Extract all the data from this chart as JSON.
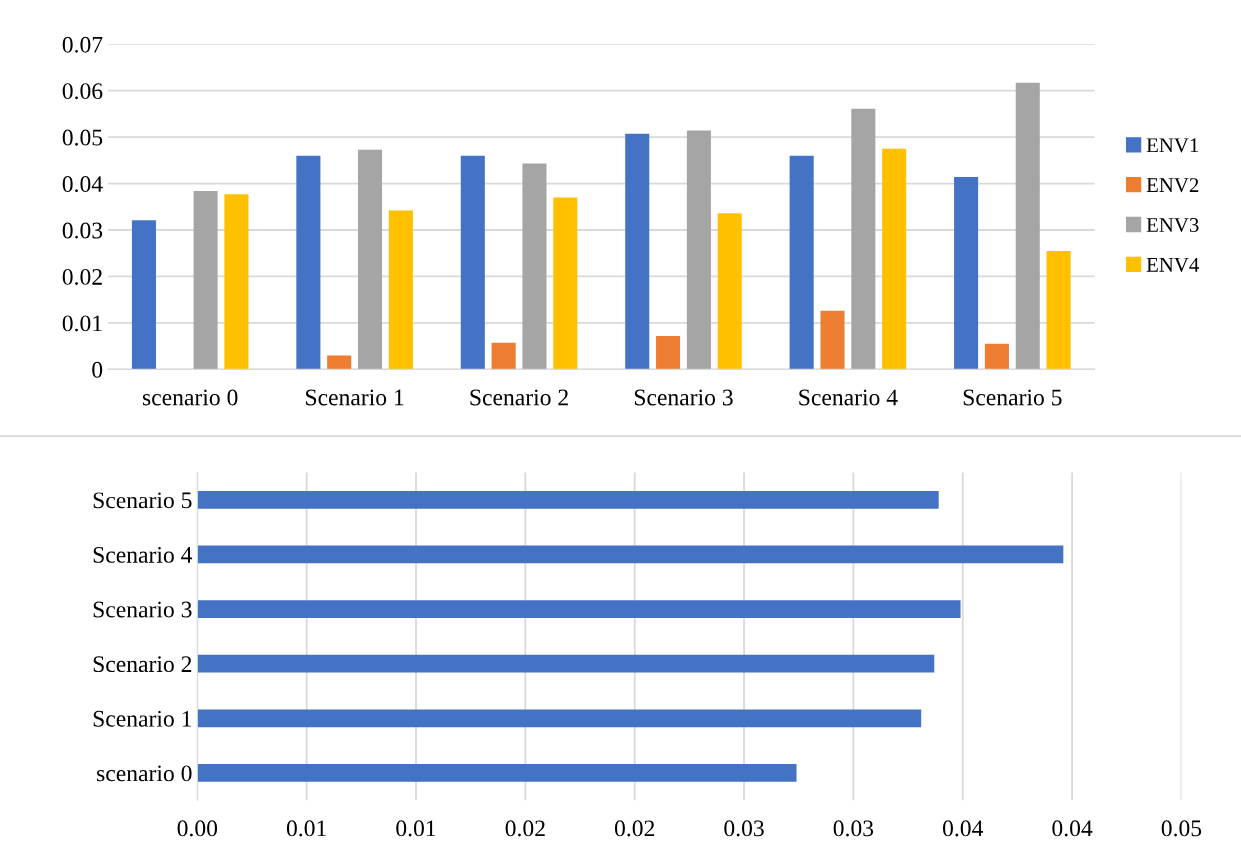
{
  "chart_data": [
    {
      "type": "bar",
      "categories": [
        "scenario 0",
        "Scenario 1",
        "Scenario 2",
        "Scenario 3",
        "Scenario 4",
        "Scenario 5"
      ],
      "series": [
        {
          "name": "ENV1",
          "color": "#4472c4",
          "values": [
            0.0321,
            0.046,
            0.046,
            0.0507,
            0.046,
            0.0414
          ]
        },
        {
          "name": "ENV2",
          "color": "#ed7d31",
          "values": [
            null,
            0.003,
            0.0057,
            0.0072,
            0.0126,
            0.0055
          ]
        },
        {
          "name": "ENV3",
          "color": "#a5a5a5",
          "values": [
            0.0384,
            0.0473,
            0.0443,
            0.0514,
            0.0561,
            0.0617
          ]
        },
        {
          "name": "ENV4",
          "color": "#ffc000",
          "values": [
            0.0377,
            0.0342,
            0.037,
            0.0336,
            0.0475,
            0.0255
          ]
        }
      ],
      "ylim": [
        0,
        0.07
      ],
      "yticks": [
        0,
        0.01,
        0.02,
        0.03,
        0.04,
        0.05,
        0.06,
        0.07
      ],
      "grid": "y",
      "legend": "right"
    },
    {
      "type": "bar",
      "orientation": "horizontal",
      "categories": [
        "Scenario 5",
        "Scenario 4",
        "Scenario 3",
        "Scenario 2",
        "Scenario 1",
        "scenario 0"
      ],
      "series": [
        {
          "color": "#4472c4",
          "values": [
            0.0339,
            0.0396,
            0.0349,
            0.0337,
            0.0331,
            0.0274
          ]
        }
      ],
      "xlim": [
        0,
        0.045
      ],
      "xticks": [
        {
          "value": 0,
          "label": "0.00"
        },
        {
          "value": 0.005,
          "label": "0.01"
        },
        {
          "value": 0.01,
          "label": "0.01"
        },
        {
          "value": 0.015,
          "label": "0.02"
        },
        {
          "value": 0.02,
          "label": "0.02"
        },
        {
          "value": 0.025,
          "label": "0.03"
        },
        {
          "value": 0.03,
          "label": "0.03"
        },
        {
          "value": 0.035,
          "label": "0.04"
        },
        {
          "value": 0.04,
          "label": "0.04"
        },
        {
          "value": 0.045,
          "label": "0.05"
        }
      ],
      "grid": "x",
      "legend": false
    }
  ]
}
